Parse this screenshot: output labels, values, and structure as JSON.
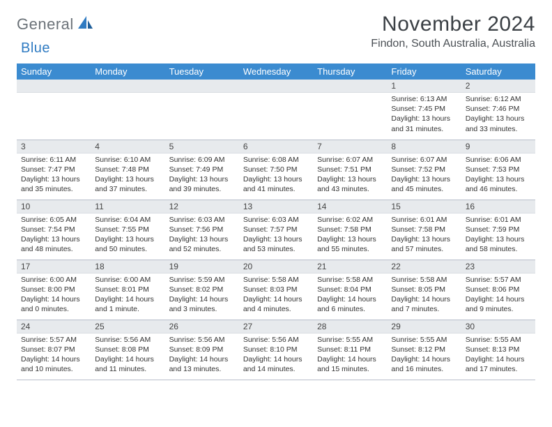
{
  "brand": {
    "part1": "General",
    "part2": "Blue"
  },
  "title": "November 2024",
  "location": "Findon, South Australia, Australia",
  "colors": {
    "header_bg": "#3b8bd0",
    "header_text": "#ffffff",
    "daynum_bg": "#e7eaed",
    "border": "#b8becb",
    "title_color": "#3a3f44",
    "logo_gray": "#6b7278",
    "logo_blue": "#2f7bc2"
  },
  "weekdays": [
    "Sunday",
    "Monday",
    "Tuesday",
    "Wednesday",
    "Thursday",
    "Friday",
    "Saturday"
  ],
  "weeks": [
    [
      null,
      null,
      null,
      null,
      null,
      {
        "n": "1",
        "sr": "6:13 AM",
        "ss": "7:45 PM",
        "dl": "13 hours and 31 minutes."
      },
      {
        "n": "2",
        "sr": "6:12 AM",
        "ss": "7:46 PM",
        "dl": "13 hours and 33 minutes."
      }
    ],
    [
      {
        "n": "3",
        "sr": "6:11 AM",
        "ss": "7:47 PM",
        "dl": "13 hours and 35 minutes."
      },
      {
        "n": "4",
        "sr": "6:10 AM",
        "ss": "7:48 PM",
        "dl": "13 hours and 37 minutes."
      },
      {
        "n": "5",
        "sr": "6:09 AM",
        "ss": "7:49 PM",
        "dl": "13 hours and 39 minutes."
      },
      {
        "n": "6",
        "sr": "6:08 AM",
        "ss": "7:50 PM",
        "dl": "13 hours and 41 minutes."
      },
      {
        "n": "7",
        "sr": "6:07 AM",
        "ss": "7:51 PM",
        "dl": "13 hours and 43 minutes."
      },
      {
        "n": "8",
        "sr": "6:07 AM",
        "ss": "7:52 PM",
        "dl": "13 hours and 45 minutes."
      },
      {
        "n": "9",
        "sr": "6:06 AM",
        "ss": "7:53 PM",
        "dl": "13 hours and 46 minutes."
      }
    ],
    [
      {
        "n": "10",
        "sr": "6:05 AM",
        "ss": "7:54 PM",
        "dl": "13 hours and 48 minutes."
      },
      {
        "n": "11",
        "sr": "6:04 AM",
        "ss": "7:55 PM",
        "dl": "13 hours and 50 minutes."
      },
      {
        "n": "12",
        "sr": "6:03 AM",
        "ss": "7:56 PM",
        "dl": "13 hours and 52 minutes."
      },
      {
        "n": "13",
        "sr": "6:03 AM",
        "ss": "7:57 PM",
        "dl": "13 hours and 53 minutes."
      },
      {
        "n": "14",
        "sr": "6:02 AM",
        "ss": "7:58 PM",
        "dl": "13 hours and 55 minutes."
      },
      {
        "n": "15",
        "sr": "6:01 AM",
        "ss": "7:58 PM",
        "dl": "13 hours and 57 minutes."
      },
      {
        "n": "16",
        "sr": "6:01 AM",
        "ss": "7:59 PM",
        "dl": "13 hours and 58 minutes."
      }
    ],
    [
      {
        "n": "17",
        "sr": "6:00 AM",
        "ss": "8:00 PM",
        "dl": "14 hours and 0 minutes."
      },
      {
        "n": "18",
        "sr": "6:00 AM",
        "ss": "8:01 PM",
        "dl": "14 hours and 1 minute."
      },
      {
        "n": "19",
        "sr": "5:59 AM",
        "ss": "8:02 PM",
        "dl": "14 hours and 3 minutes."
      },
      {
        "n": "20",
        "sr": "5:58 AM",
        "ss": "8:03 PM",
        "dl": "14 hours and 4 minutes."
      },
      {
        "n": "21",
        "sr": "5:58 AM",
        "ss": "8:04 PM",
        "dl": "14 hours and 6 minutes."
      },
      {
        "n": "22",
        "sr": "5:58 AM",
        "ss": "8:05 PM",
        "dl": "14 hours and 7 minutes."
      },
      {
        "n": "23",
        "sr": "5:57 AM",
        "ss": "8:06 PM",
        "dl": "14 hours and 9 minutes."
      }
    ],
    [
      {
        "n": "24",
        "sr": "5:57 AM",
        "ss": "8:07 PM",
        "dl": "14 hours and 10 minutes."
      },
      {
        "n": "25",
        "sr": "5:56 AM",
        "ss": "8:08 PM",
        "dl": "14 hours and 11 minutes."
      },
      {
        "n": "26",
        "sr": "5:56 AM",
        "ss": "8:09 PM",
        "dl": "14 hours and 13 minutes."
      },
      {
        "n": "27",
        "sr": "5:56 AM",
        "ss": "8:10 PM",
        "dl": "14 hours and 14 minutes."
      },
      {
        "n": "28",
        "sr": "5:55 AM",
        "ss": "8:11 PM",
        "dl": "14 hours and 15 minutes."
      },
      {
        "n": "29",
        "sr": "5:55 AM",
        "ss": "8:12 PM",
        "dl": "14 hours and 16 minutes."
      },
      {
        "n": "30",
        "sr": "5:55 AM",
        "ss": "8:13 PM",
        "dl": "14 hours and 17 minutes."
      }
    ]
  ],
  "labels": {
    "sunrise": "Sunrise:",
    "sunset": "Sunset:",
    "daylight": "Daylight:"
  }
}
